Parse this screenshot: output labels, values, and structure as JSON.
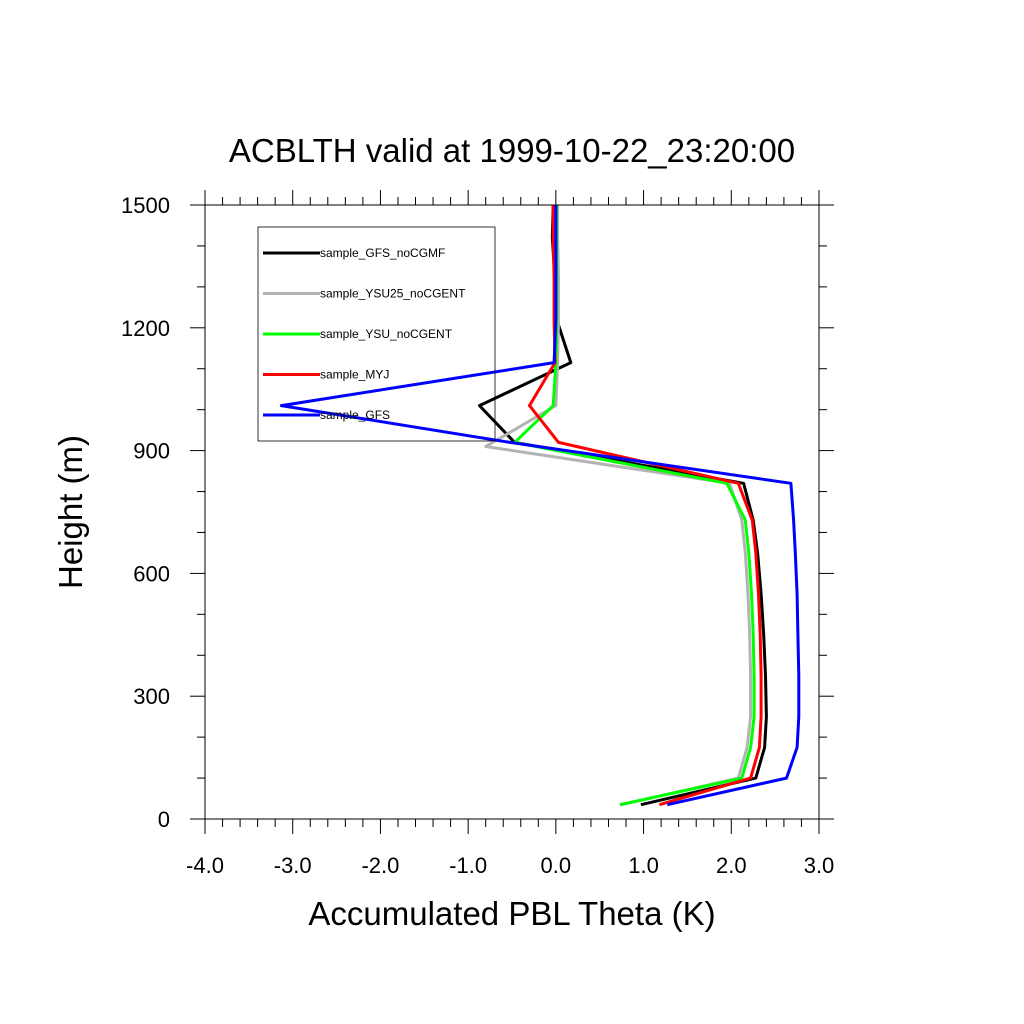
{
  "chart_data": {
    "type": "line",
    "title": "ACBLTH valid at 1999-10-22_23:20:00",
    "xlabel": "Accumulated PBL Theta (K)",
    "ylabel": "Height (m)",
    "xlim": [
      -4.0,
      3.0
    ],
    "ylim": [
      0,
      1500
    ],
    "xticks": [
      -4.0,
      -3.0,
      -2.0,
      -1.0,
      0.0,
      1.0,
      2.0,
      3.0
    ],
    "xtick_labels": [
      "-4.0",
      "-3.0",
      "-2.0",
      "-1.0",
      "0.0",
      "1.0",
      "2.0",
      "3.0"
    ],
    "yticks": [
      0,
      300,
      600,
      900,
      1200,
      1500
    ],
    "ytick_labels": [
      "0",
      "300",
      "600",
      "900",
      "1200",
      "1500"
    ],
    "x_minor_step": 0.2,
    "y_minor_step": 100,
    "grid": false,
    "legend_position": "top-left",
    "series": [
      {
        "name": "sample_GFS_noCGMF",
        "color": "#000000",
        "x": [
          0.97,
          2.28,
          2.38,
          2.4,
          2.39,
          2.37,
          2.34,
          2.3,
          2.25,
          2.14,
          -0.47,
          -0.87,
          0.17,
          0.01,
          -0.01,
          -0.04,
          -0.03
        ],
        "y": [
          35,
          100,
          175,
          250,
          350,
          450,
          550,
          650,
          730,
          820,
          920,
          1010,
          1115,
          1220,
          1320,
          1420,
          1500
        ]
      },
      {
        "name": "sample_YSU25_noCGENT",
        "color": "#b3b3b3",
        "x": [
          0.75,
          2.08,
          2.18,
          2.22,
          2.22,
          2.21,
          2.19,
          2.16,
          2.12,
          1.98,
          -0.8,
          0.0,
          0.02,
          0.03,
          0.03,
          0.02,
          0.02
        ],
        "y": [
          35,
          100,
          175,
          250,
          350,
          450,
          550,
          650,
          730,
          820,
          910,
          1010,
          1115,
          1220,
          1320,
          1420,
          1500
        ]
      },
      {
        "name": "sample_YSU_noCGENT",
        "color": "#00ff00",
        "x": [
          0.73,
          2.12,
          2.22,
          2.26,
          2.26,
          2.25,
          2.23,
          2.2,
          2.16,
          1.95,
          -0.47,
          -0.03,
          0.0,
          0.01,
          0.01,
          0.01,
          0.01
        ],
        "y": [
          35,
          100,
          175,
          250,
          350,
          450,
          550,
          650,
          730,
          820,
          920,
          1010,
          1115,
          1220,
          1320,
          1420,
          1500
        ]
      },
      {
        "name": "sample_MYJ",
        "color": "#ff0000",
        "x": [
          1.18,
          2.22,
          2.32,
          2.34,
          2.34,
          2.33,
          2.31,
          2.28,
          2.24,
          2.08,
          0.03,
          -0.3,
          -0.01,
          -0.02,
          -0.02,
          -0.03,
          -0.03
        ],
        "y": [
          35,
          100,
          175,
          250,
          350,
          450,
          550,
          650,
          730,
          820,
          920,
          1010,
          1115,
          1220,
          1320,
          1420,
          1500
        ]
      },
      {
        "name": "sample_GFS",
        "color": "#0000ff",
        "x": [
          1.27,
          2.63,
          2.75,
          2.77,
          2.77,
          2.76,
          2.75,
          2.73,
          2.71,
          2.68,
          -0.52,
          -3.13,
          -0.02,
          0.0,
          0.0,
          0.0,
          0.0
        ],
        "y": [
          35,
          100,
          175,
          250,
          350,
          450,
          550,
          650,
          730,
          820,
          920,
          1010,
          1115,
          1220,
          1320,
          1420,
          1500
        ]
      }
    ]
  }
}
